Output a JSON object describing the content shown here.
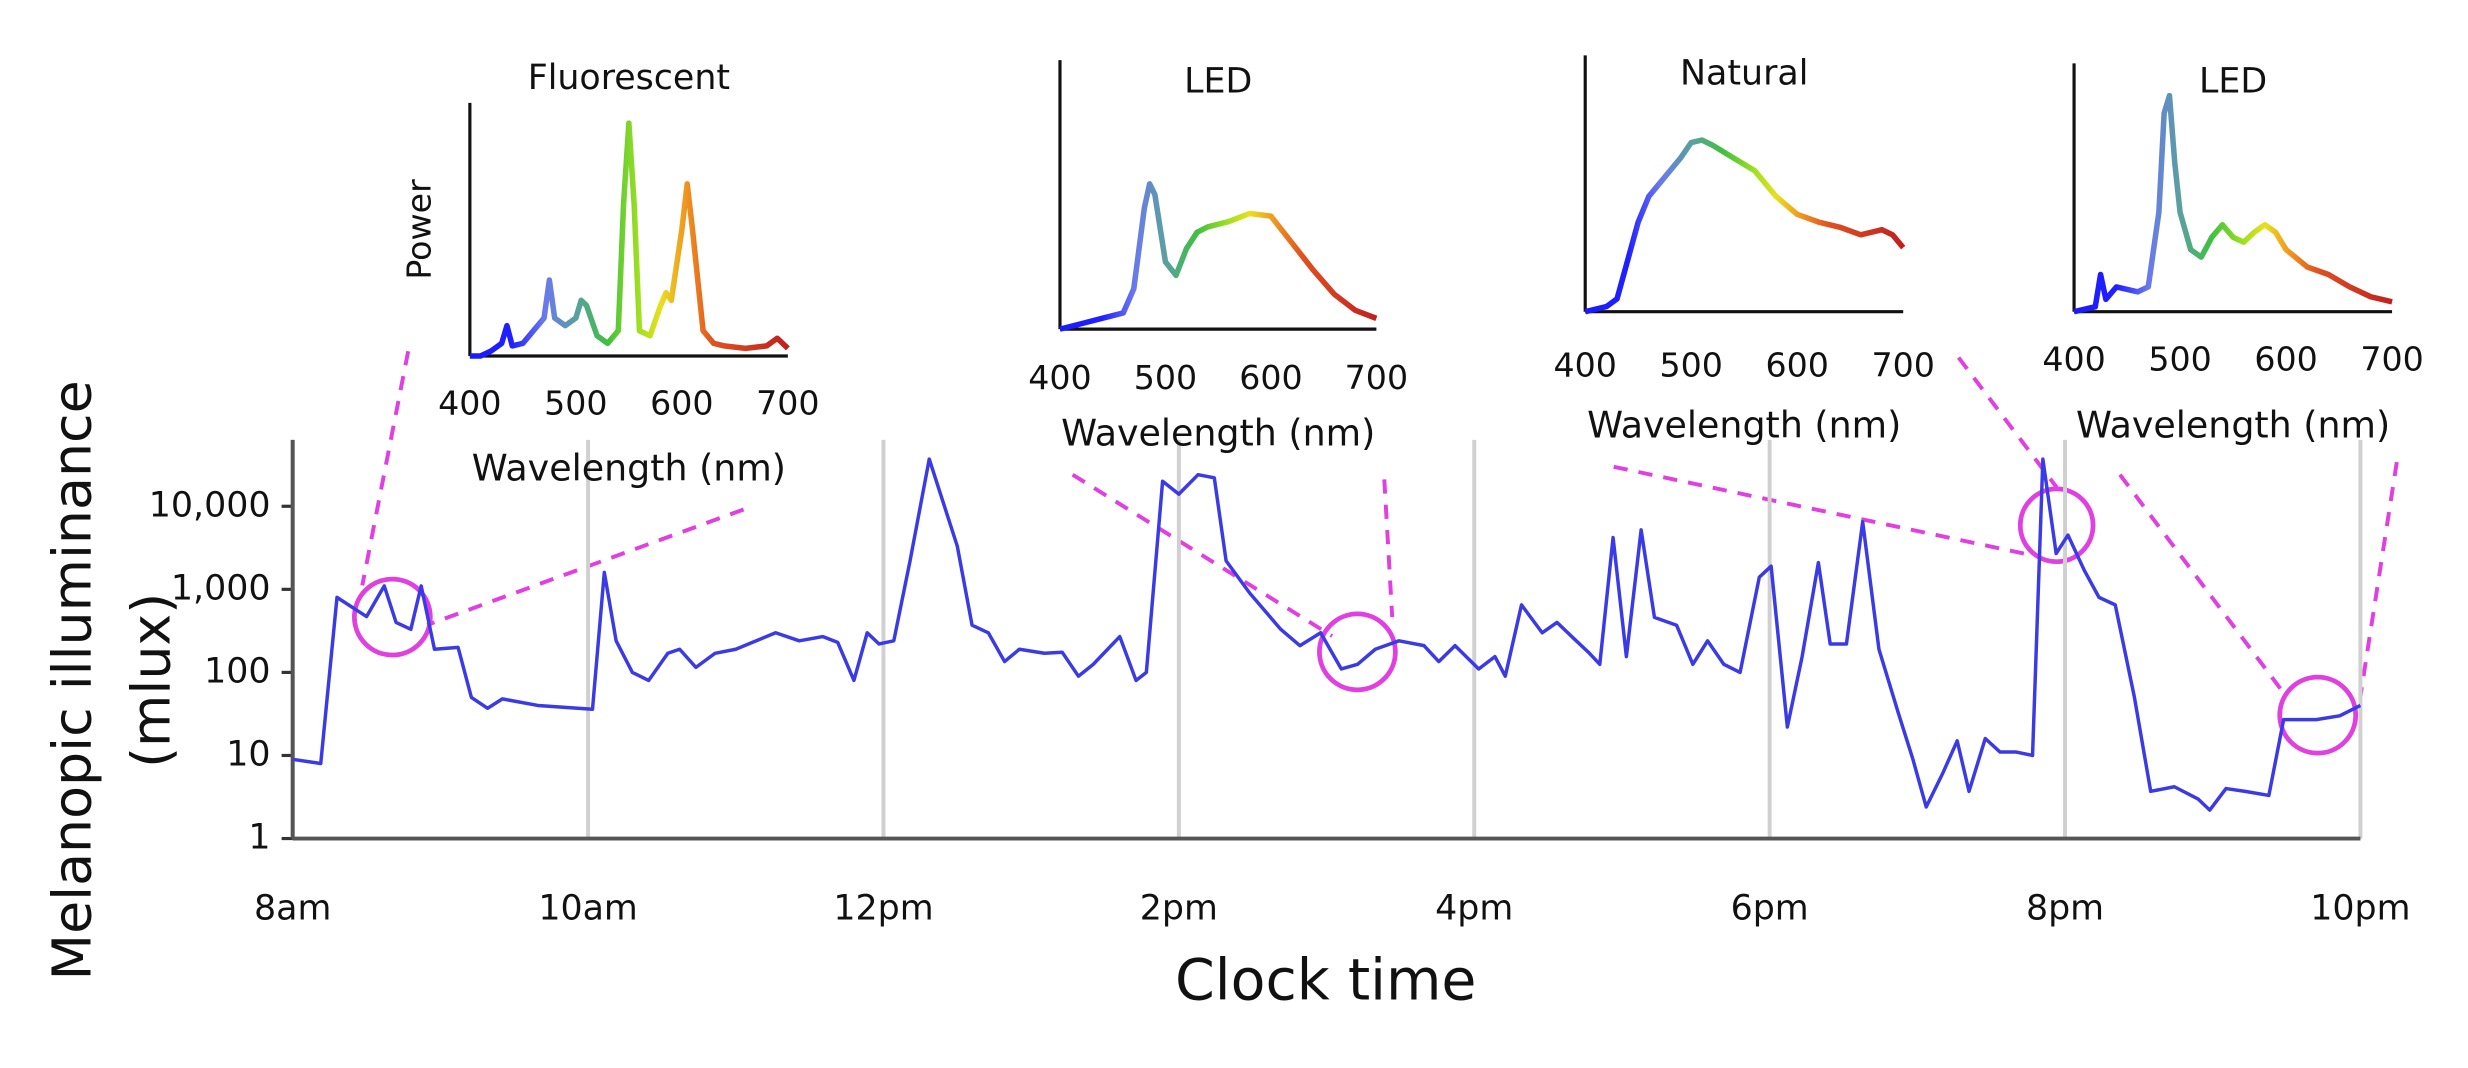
{
  "chart_data": [
    {
      "type": "line",
      "xlabel": "Clock time",
      "ylabel": [
        "Melanopic illuminance",
        "(mlux)"
      ],
      "color": "#3b3be6",
      "ylog": true,
      "grid": true,
      "xlim": [
        8,
        22
      ],
      "xticks": [
        {
          "value": 8,
          "label": "8am"
        },
        {
          "value": 10,
          "label": "10am"
        },
        {
          "value": 12,
          "label": "12pm"
        },
        {
          "value": 14,
          "label": "2pm"
        },
        {
          "value": 16,
          "label": "4pm"
        },
        {
          "value": 18,
          "label": "6pm"
        },
        {
          "value": 20,
          "label": "8pm"
        },
        {
          "value": 22,
          "label": "10pm"
        }
      ],
      "ylim": [
        1,
        63000
      ],
      "yticks": [
        1,
        10,
        100,
        {
          "value": 1000,
          "label": "1,000"
        },
        {
          "value": 10000,
          "label": "10,000"
        }
      ],
      "x": [
        8.0,
        8.19,
        8.3,
        8.5,
        8.62,
        8.7,
        8.8,
        8.87,
        8.96,
        9.12,
        9.21,
        9.32,
        9.42,
        9.66,
        10.03,
        10.11,
        10.19,
        10.3,
        10.41,
        10.54,
        10.62,
        10.73,
        10.86,
        11.0,
        11.27,
        11.43,
        11.59,
        11.69,
        11.8,
        11.89,
        11.97,
        12.07,
        12.18,
        12.31,
        12.5,
        12.6,
        12.71,
        12.82,
        12.92,
        13.09,
        13.21,
        13.32,
        13.42,
        13.6,
        13.71,
        13.78,
        13.89,
        14.0,
        14.13,
        14.24,
        14.32,
        14.48,
        14.69,
        14.82,
        14.96,
        15.1,
        15.21,
        15.33,
        15.49,
        15.66,
        15.76,
        15.87,
        16.03,
        16.14,
        16.21,
        16.32,
        16.46,
        16.56,
        16.67,
        16.78,
        16.85,
        16.94,
        17.03,
        17.13,
        17.22,
        17.37,
        17.48,
        17.58,
        17.69,
        17.8,
        17.93,
        18.01,
        18.12,
        18.22,
        18.33,
        18.41,
        18.52,
        18.63,
        18.74,
        18.87,
        18.97,
        19.06,
        19.17,
        19.27,
        19.35,
        19.46,
        19.56,
        19.67,
        19.78,
        19.85,
        19.94,
        20.02,
        20.13,
        20.23,
        20.34,
        20.47,
        20.58,
        20.74,
        20.9,
        20.98,
        21.09,
        21.22,
        21.38,
        21.48,
        21.7,
        21.86,
        22.0
      ],
      "values": [
        9,
        8,
        800,
        470,
        1100,
        400,
        330,
        1100,
        190,
        200,
        50,
        37,
        48,
        40,
        36,
        1600,
        240,
        100,
        80,
        170,
        190,
        115,
        170,
        190,
        300,
        240,
        270,
        230,
        80,
        300,
        220,
        240,
        2200,
        37000,
        3300,
        370,
        300,
        135,
        190,
        170,
        175,
        90,
        125,
        270,
        80,
        100,
        20000,
        14000,
        24000,
        22000,
        2200,
        900,
        330,
        210,
        300,
        110,
        125,
        190,
        240,
        210,
        135,
        210,
        110,
        155,
        90,
        650,
        300,
        400,
        260,
        170,
        125,
        4200,
        155,
        5200,
        460,
        370,
        125,
        240,
        125,
        100,
        1400,
        1900,
        22,
        155,
        2100,
        220,
        220,
        6500,
        190,
        33,
        9,
        2.4,
        6,
        15,
        3.7,
        16,
        11,
        11,
        10,
        37000,
        2700,
        4500,
        1700,
        800,
        650,
        50,
        3.7,
        4.2,
        3,
        2.2,
        4,
        3.7,
        3.3,
        27,
        27,
        30,
        40
      ]
    },
    {
      "type": "line",
      "title": "Fluorescent",
      "xlabel": "Wavelength (nm)",
      "ylabel": "Power",
      "xlim": [
        400,
        700
      ],
      "xticks": [
        400,
        500,
        600,
        700
      ],
      "ylim": [
        0,
        1
      ],
      "x": [
        400,
        410,
        420,
        430,
        435,
        440,
        450,
        460,
        470,
        475,
        480,
        490,
        500,
        505,
        510,
        520,
        530,
        540,
        545,
        550,
        555,
        560,
        570,
        580,
        585,
        590,
        600,
        605,
        610,
        620,
        630,
        640,
        660,
        680,
        690,
        700
      ],
      "values": [
        0,
        0,
        0.02,
        0.05,
        0.12,
        0.04,
        0.05,
        0.1,
        0.15,
        0.3,
        0.15,
        0.12,
        0.15,
        0.22,
        0.2,
        0.08,
        0.05,
        0.1,
        0.6,
        0.92,
        0.6,
        0.1,
        0.08,
        0.2,
        0.25,
        0.22,
        0.5,
        0.68,
        0.5,
        0.1,
        0.05,
        0.04,
        0.03,
        0.04,
        0.07,
        0.03
      ]
    },
    {
      "type": "line",
      "title": "LED",
      "xlabel": "Wavelength (nm)",
      "xlim": [
        400,
        700
      ],
      "xticks": [
        400,
        500,
        600,
        700
      ],
      "ylim": [
        0,
        1
      ],
      "x": [
        400,
        420,
        440,
        460,
        470,
        480,
        485,
        490,
        500,
        510,
        520,
        530,
        540,
        560,
        580,
        600,
        620,
        640,
        660,
        680,
        700
      ],
      "values": [
        0,
        0.02,
        0.04,
        0.06,
        0.15,
        0.45,
        0.54,
        0.5,
        0.25,
        0.2,
        0.3,
        0.36,
        0.38,
        0.4,
        0.43,
        0.42,
        0.32,
        0.22,
        0.13,
        0.07,
        0.04
      ]
    },
    {
      "type": "line",
      "title": "Natural",
      "xlabel": "Wavelength (nm)",
      "xlim": [
        400,
        700
      ],
      "xticks": [
        400,
        500,
        600,
        700
      ],
      "ylim": [
        0,
        1
      ],
      "x": [
        400,
        420,
        430,
        440,
        450,
        460,
        470,
        480,
        490,
        500,
        510,
        520,
        540,
        560,
        580,
        600,
        620,
        640,
        660,
        680,
        690,
        700
      ],
      "values": [
        0,
        0.02,
        0.05,
        0.2,
        0.35,
        0.45,
        0.5,
        0.55,
        0.6,
        0.66,
        0.67,
        0.65,
        0.6,
        0.55,
        0.45,
        0.38,
        0.35,
        0.33,
        0.3,
        0.32,
        0.3,
        0.25
      ]
    },
    {
      "type": "line",
      "title": "LED",
      "xlabel": "Wavelength (nm)",
      "xlim": [
        400,
        700
      ],
      "xticks": [
        400,
        500,
        600,
        700
      ],
      "ylim": [
        0,
        1
      ],
      "x": [
        400,
        420,
        425,
        430,
        440,
        460,
        470,
        480,
        485,
        490,
        495,
        500,
        510,
        520,
        530,
        540,
        550,
        560,
        570,
        580,
        590,
        600,
        620,
        640,
        660,
        680,
        700
      ],
      "values": [
        0,
        0.02,
        0.15,
        0.05,
        0.1,
        0.08,
        0.1,
        0.4,
        0.8,
        0.87,
        0.6,
        0.4,
        0.25,
        0.22,
        0.3,
        0.35,
        0.3,
        0.28,
        0.32,
        0.35,
        0.32,
        0.25,
        0.18,
        0.15,
        0.1,
        0.06,
        0.04
      ]
    }
  ]
}
